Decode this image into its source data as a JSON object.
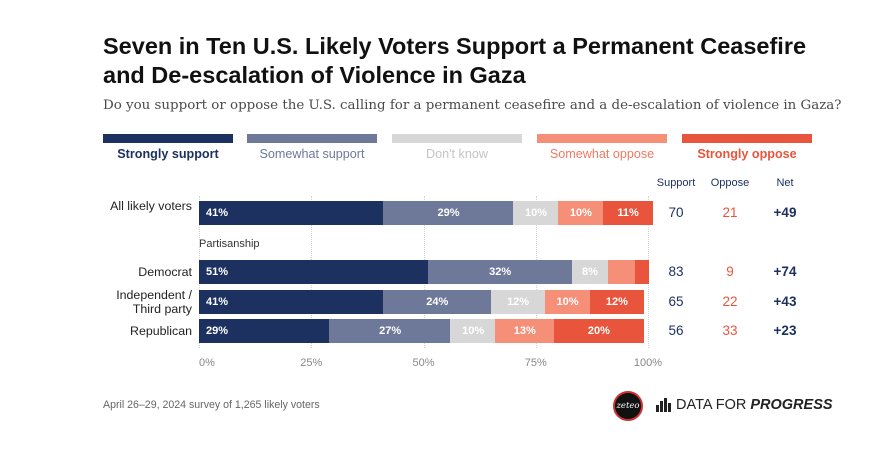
{
  "header": {
    "title": "Seven in Ten U.S. Likely Voters Support a Permanent Ceasefire and De-escalation of Violence in Gaza",
    "subtitle": "Do you support or oppose the U.S. calling for a permanent ceasefire and a de-escalation of violence in Gaza?"
  },
  "columns": {
    "support": "Support",
    "oppose": "Oppose",
    "net": "Net"
  },
  "section_label": "Partisanship",
  "footnote": "April 26–29, 2024 survey of 1,265 likely voters",
  "branding": {
    "zeteo": "zeteo",
    "dfp_regular": "DATA FOR",
    "dfp_bold": "PROGRESS"
  },
  "colors": {
    "strongly_support": "#1d3160",
    "somewhat_support": "#6e7898",
    "dont_know": "#d7d7d7",
    "somewhat_oppose": "#f58f78",
    "strongly_oppose": "#e8553c"
  },
  "chart_data": {
    "type": "bar",
    "orientation": "horizontal-stacked",
    "title": "Seven in Ten U.S. Likely Voters Support a Permanent Ceasefire and De-escalation of Violence in Gaza",
    "subtitle": "Do you support or oppose the U.S. calling for a permanent ceasefire and a de-escalation of violence in Gaza?",
    "xlim": [
      0,
      100
    ],
    "x_ticks": [
      "0%",
      "25%",
      "50%",
      "75%",
      "100%"
    ],
    "legend_position": "top",
    "categories": [
      "All likely voters",
      "Democrat",
      "Independent / Third party",
      "Republican"
    ],
    "series": [
      {
        "name": "Strongly support",
        "values": [
          41,
          51,
          41,
          29
        ],
        "labels": [
          "41%",
          "51%",
          "41%",
          "29%"
        ]
      },
      {
        "name": "Somewhat support",
        "values": [
          29,
          32,
          24,
          27
        ],
        "labels": [
          "29%",
          "32%",
          "24%",
          "27%"
        ]
      },
      {
        "name": "Don't know",
        "values": [
          10,
          8,
          12,
          10
        ],
        "labels": [
          "10%",
          "8%",
          "12%",
          "10%"
        ]
      },
      {
        "name": "Somewhat oppose",
        "values": [
          10,
          6,
          10,
          13
        ],
        "labels": [
          "10%",
          "",
          "10%",
          "13%"
        ]
      },
      {
        "name": "Strongly oppose",
        "values": [
          11,
          3,
          12,
          20
        ],
        "labels": [
          "11%",
          "",
          "12%",
          "20%"
        ]
      }
    ],
    "summary": [
      {
        "support": "70",
        "oppose": "21",
        "net": "+49"
      },
      {
        "support": "83",
        "oppose": "9",
        "net": "+74"
      },
      {
        "support": "65",
        "oppose": "22",
        "net": "+43"
      },
      {
        "support": "56",
        "oppose": "33",
        "net": "+23"
      }
    ]
  }
}
